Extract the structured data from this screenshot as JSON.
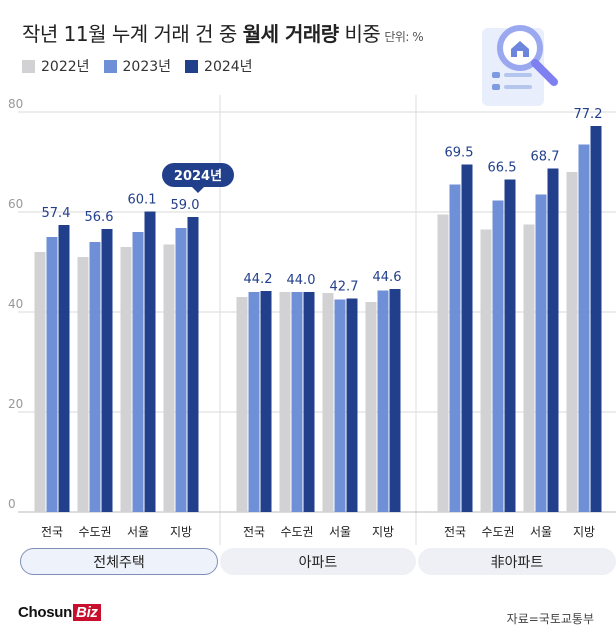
{
  "header": {
    "title_prefix": "작년 11월 누계 거래 건 중 ",
    "title_bold": "월세 거래량",
    "title_suffix": " 비중",
    "unit": "단위: %"
  },
  "source": "자료=국토교통부",
  "logo": {
    "main": "Chosun",
    "accent": "Biz"
  },
  "chart_data": {
    "type": "bar",
    "ylim": [
      0,
      80
    ],
    "yticks": [
      "0",
      "20",
      "40",
      "60",
      "80"
    ],
    "grid": true,
    "legend_position": "top-left",
    "series": [
      {
        "name": "2022년",
        "color": "#d2d2d4"
      },
      {
        "name": "2023년",
        "color": "#6f8fd6"
      },
      {
        "name": "2024년",
        "color": "#223f8b"
      }
    ],
    "groups": [
      {
        "label": "전체주택",
        "categories": [
          {
            "label": "전국",
            "values": [
              52.0,
              55.0,
              57.4
            ]
          },
          {
            "label": "수도권",
            "values": [
              51.0,
              54.0,
              56.6
            ]
          },
          {
            "label": "서울",
            "values": [
              53.0,
              56.0,
              60.1
            ]
          },
          {
            "label": "지방",
            "values": [
              53.5,
              56.8,
              59.0
            ]
          }
        ]
      },
      {
        "label": "아파트",
        "categories": [
          {
            "label": "전국",
            "values": [
              43.0,
              44.0,
              44.2
            ]
          },
          {
            "label": "수도권",
            "values": [
              44.0,
              44.0,
              44.0
            ]
          },
          {
            "label": "서울",
            "values": [
              43.8,
              42.5,
              42.7
            ]
          },
          {
            "label": "지방",
            "values": [
              42.0,
              44.3,
              44.6
            ]
          }
        ]
      },
      {
        "label": "非아파트",
        "categories": [
          {
            "label": "전국",
            "values": [
              59.5,
              65.5,
              69.5
            ]
          },
          {
            "label": "수도권",
            "values": [
              56.5,
              62.3,
              66.5
            ]
          },
          {
            "label": "서울",
            "values": [
              57.5,
              63.5,
              68.7
            ]
          },
          {
            "label": "지방",
            "values": [
              68.0,
              73.5,
              77.2
            ]
          }
        ]
      }
    ],
    "data_labels": [
      "57.4",
      "56.6",
      "60.1",
      "59.0",
      "44.2",
      "44.0",
      "42.7",
      "44.6",
      "69.5",
      "66.5",
      "68.7",
      "77.2"
    ],
    "callout": "2024년"
  }
}
